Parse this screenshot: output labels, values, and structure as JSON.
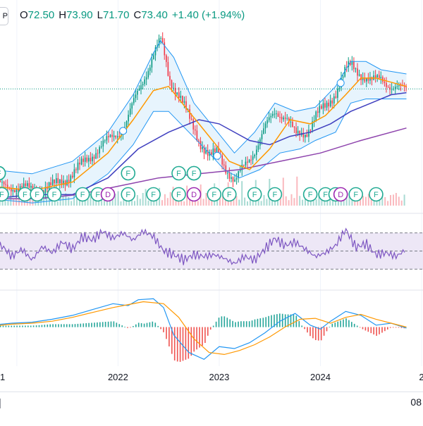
{
  "legend": {
    "open_label": "O",
    "open": "72.50",
    "high_label": "H",
    "high": "73.90",
    "low_label": "L",
    "low": "71.70",
    "close_label": "C",
    "close": "73.40",
    "change": "+1.40 (+1.94%)",
    "up_color": "#089981"
  },
  "corner_button_label": "P",
  "bottom_right_label": "08",
  "colors": {
    "up": "#089981",
    "down": "#f23645",
    "bb": "#2196f3",
    "bb_fill": "#e3f2fd",
    "sma_fast": "#ff9800",
    "sma_mid": "#3f3fbf",
    "sma_slow": "#8e44ad",
    "rsi": "#7e57c2",
    "rsi_band": "#ede7f6",
    "macd": "#2196f3",
    "signal": "#ff9800",
    "hist_up": "#26a69a",
    "hist_down": "#ef5350",
    "dividend": "#9c27b0"
  },
  "chart_data": [
    {
      "type": "line",
      "panel": "price",
      "x_ticks": [
        "1",
        "2022",
        "2023",
        "2024",
        "2"
      ],
      "x_tick_positions_years": [
        2021.0,
        2022.0,
        2023.0,
        2024.0,
        2025.0
      ],
      "series": [
        {
          "role": "price",
          "x": [
            2020.75,
            2020.95,
            2021.15,
            2021.35,
            2021.55,
            2021.75,
            2021.9,
            2022.05,
            2022.15,
            2022.25,
            2022.35,
            2022.42,
            2022.5,
            2022.6,
            2022.7,
            2022.8,
            2022.9,
            2022.98,
            2023.05,
            2023.15,
            2023.25,
            2023.35,
            2023.45,
            2023.55,
            2023.65,
            2023.75,
            2023.85,
            2023.95,
            2024.05,
            2024.15,
            2024.25,
            2024.3,
            2024.4,
            2024.5,
            2024.6,
            2024.7,
            2024.8,
            2024.85
          ],
          "y": [
            50,
            50,
            49,
            50,
            53,
            58,
            61,
            64,
            70,
            76,
            82,
            85,
            76,
            72,
            66,
            61,
            57,
            58,
            55,
            51,
            55,
            59,
            64,
            68,
            67,
            62,
            63,
            67,
            69,
            73,
            78,
            79,
            77,
            75,
            76,
            74,
            73,
            73.4
          ]
        },
        {
          "role": "bb_upper",
          "x": [
            2020.75,
            2021.15,
            2021.55,
            2021.9,
            2022.15,
            2022.35,
            2022.42,
            2022.55,
            2022.75,
            2022.95,
            2023.15,
            2023.35,
            2023.55,
            2023.75,
            2023.95,
            2024.15,
            2024.3,
            2024.45,
            2024.6,
            2024.85
          ],
          "y": [
            54,
            53,
            56,
            63,
            72,
            82,
            85,
            81,
            70,
            64,
            58,
            63,
            70,
            68,
            69,
            74,
            80,
            80,
            78,
            77
          ]
        },
        {
          "role": "bb_lower",
          "x": [
            2020.75,
            2021.15,
            2021.55,
            2021.9,
            2022.15,
            2022.35,
            2022.5,
            2022.7,
            2022.9,
            2023.05,
            2023.2,
            2023.4,
            2023.6,
            2023.8,
            2023.95,
            2024.15,
            2024.3,
            2024.45,
            2024.6,
            2024.85
          ],
          "y": [
            47,
            46,
            47,
            53,
            60,
            68,
            68,
            63,
            58,
            54,
            52,
            54,
            58,
            59,
            61,
            63,
            70,
            71,
            71,
            71
          ]
        },
        {
          "role": "sma_fast",
          "x": [
            2020.75,
            2021.15,
            2021.55,
            2021.9,
            2022.15,
            2022.35,
            2022.5,
            2022.7,
            2022.9,
            2023.1,
            2023.3,
            2023.5,
            2023.7,
            2023.9,
            2024.05,
            2024.25,
            2024.4,
            2024.55,
            2024.7,
            2024.85
          ],
          "y": [
            50,
            49,
            51,
            58,
            66,
            73,
            74,
            68,
            62,
            56,
            54,
            59,
            66,
            65,
            67,
            72,
            76,
            76,
            75,
            74
          ]
        },
        {
          "role": "sma_mid",
          "x": [
            2020.75,
            2021.15,
            2021.55,
            2021.9,
            2022.2,
            2022.5,
            2022.8,
            2023.0,
            2023.3,
            2023.5,
            2023.7,
            2023.9,
            2024.1,
            2024.3,
            2024.5,
            2024.7,
            2024.85
          ],
          "y": [
            47,
            48,
            48,
            52,
            59,
            63,
            66,
            65,
            61,
            60,
            62,
            63,
            65,
            68,
            70,
            72,
            72.5
          ]
        },
        {
          "role": "sma_slow",
          "x": [
            2020.75,
            2021.2,
            2021.6,
            2022.0,
            2022.4,
            2022.8,
            2023.2,
            2023.6,
            2024.0,
            2024.4,
            2024.85
          ],
          "y": [
            47,
            47,
            48,
            50,
            52,
            53,
            54,
            56,
            58,
            61,
            64
          ]
        }
      ],
      "events_earnings_x": [
        2020.82,
        2020.85,
        2021.08,
        2021.2,
        2021.37,
        2021.65,
        2021.8,
        2022.1,
        2022.35,
        2022.6,
        2022.75,
        2022.95,
        2023.1,
        2023.35,
        2023.55,
        2023.9,
        2024.05,
        2024.15,
        2024.35,
        2024.55
      ],
      "events_dividend_x": [
        2021.9,
        2022.75,
        2024.2
      ],
      "events_split_x": [
        2022.05,
        2022.98,
        2024.2
      ],
      "event_label_earnings": "F",
      "event_label_dividend": "D"
    },
    {
      "type": "line",
      "panel": "rsi",
      "levels": [
        70,
        50,
        30
      ],
      "series": [
        {
          "role": "rsi",
          "x": [
            2020.75,
            2020.85,
            2020.95,
            2021.05,
            2021.15,
            2021.25,
            2021.35,
            2021.45,
            2021.55,
            2021.65,
            2021.75,
            2021.85,
            2021.95,
            2022.05,
            2022.15,
            2022.25,
            2022.35,
            2022.45,
            2022.55,
            2022.65,
            2022.75,
            2022.85,
            2022.95,
            2023.05,
            2023.15,
            2023.25,
            2023.35,
            2023.45,
            2023.55,
            2023.65,
            2023.75,
            2023.85,
            2023.95,
            2024.05,
            2024.15,
            2024.25,
            2024.35,
            2024.45,
            2024.55,
            2024.65,
            2024.75,
            2024.85
          ],
          "y": [
            48,
            56,
            44,
            52,
            40,
            55,
            48,
            60,
            52,
            66,
            62,
            72,
            64,
            70,
            62,
            72,
            66,
            50,
            46,
            40,
            46,
            44,
            46,
            42,
            36,
            44,
            40,
            52,
            64,
            56,
            60,
            52,
            44,
            48,
            56,
            74,
            54,
            58,
            46,
            48,
            44,
            52
          ]
        }
      ]
    },
    {
      "type": "line",
      "panel": "macd",
      "series": [
        {
          "role": "macd",
          "x": [
            2020.75,
            2020.95,
            2021.15,
            2021.35,
            2021.55,
            2021.75,
            2021.95,
            2022.1,
            2022.2,
            2022.35,
            2022.45,
            2022.55,
            2022.7,
            2022.85,
            2023.0,
            2023.15,
            2023.3,
            2023.45,
            2023.6,
            2023.75,
            2023.9,
            2024.0,
            2024.1,
            2024.25,
            2024.4,
            2024.55,
            2024.7,
            2024.85
          ],
          "y": [
            0.2,
            0.4,
            0.5,
            0.8,
            1.2,
            1.8,
            2.4,
            2.2,
            2.8,
            2.9,
            2.0,
            -0.8,
            -2.6,
            -3.3,
            -2.0,
            -2.2,
            -1.6,
            -0.6,
            0.6,
            1.4,
            0.2,
            -0.2,
            0.6,
            1.6,
            1.2,
            0.2,
            0.4,
            -0.1
          ]
        },
        {
          "role": "signal",
          "x": [
            2020.75,
            2020.95,
            2021.15,
            2021.35,
            2021.55,
            2021.75,
            2021.95,
            2022.1,
            2022.25,
            2022.45,
            2022.6,
            2022.75,
            2022.9,
            2023.05,
            2023.2,
            2023.35,
            2023.5,
            2023.65,
            2023.8,
            2023.95,
            2024.1,
            2024.25,
            2024.4,
            2024.55,
            2024.7,
            2024.85
          ],
          "y": [
            0.1,
            0.3,
            0.4,
            0.6,
            1.0,
            1.5,
            2.0,
            2.3,
            2.6,
            2.4,
            1.0,
            -1.2,
            -2.6,
            -2.8,
            -2.4,
            -1.8,
            -1.0,
            0.0,
            0.8,
            0.9,
            0.4,
            1.0,
            1.3,
            0.8,
            0.4,
            0.0
          ]
        }
      ]
    }
  ]
}
